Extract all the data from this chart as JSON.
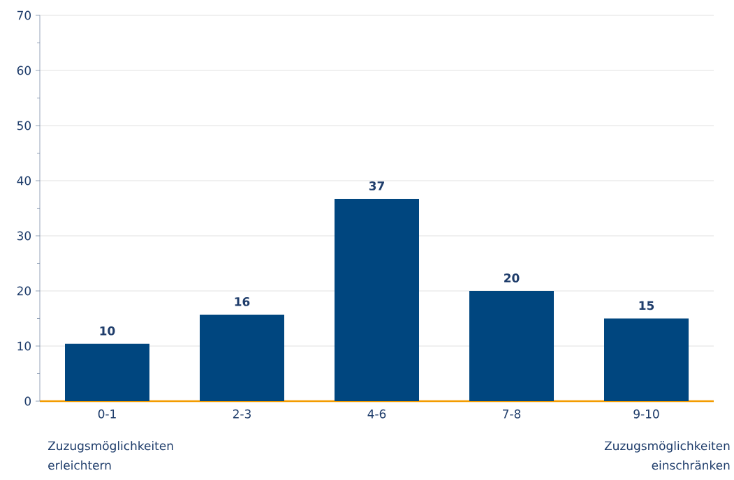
{
  "chart_data": {
    "type": "bar",
    "categories": [
      "0-1",
      "2-3",
      "4-6",
      "7-8",
      "9-10"
    ],
    "values": [
      10.4,
      15.7,
      36.7,
      20,
      15
    ],
    "value_labels": [
      "10",
      "16",
      "37",
      "20",
      "15"
    ],
    "color": "#00467f",
    "ylim": [
      0,
      70
    ],
    "yticks": [
      0,
      10,
      20,
      30,
      40,
      50,
      60,
      70
    ],
    "grid": "y",
    "annotations": [
      "Zuzugsmöglichkeiten erleichtern",
      "Zuzugsmöglichkeiten einschränken"
    ]
  }
}
